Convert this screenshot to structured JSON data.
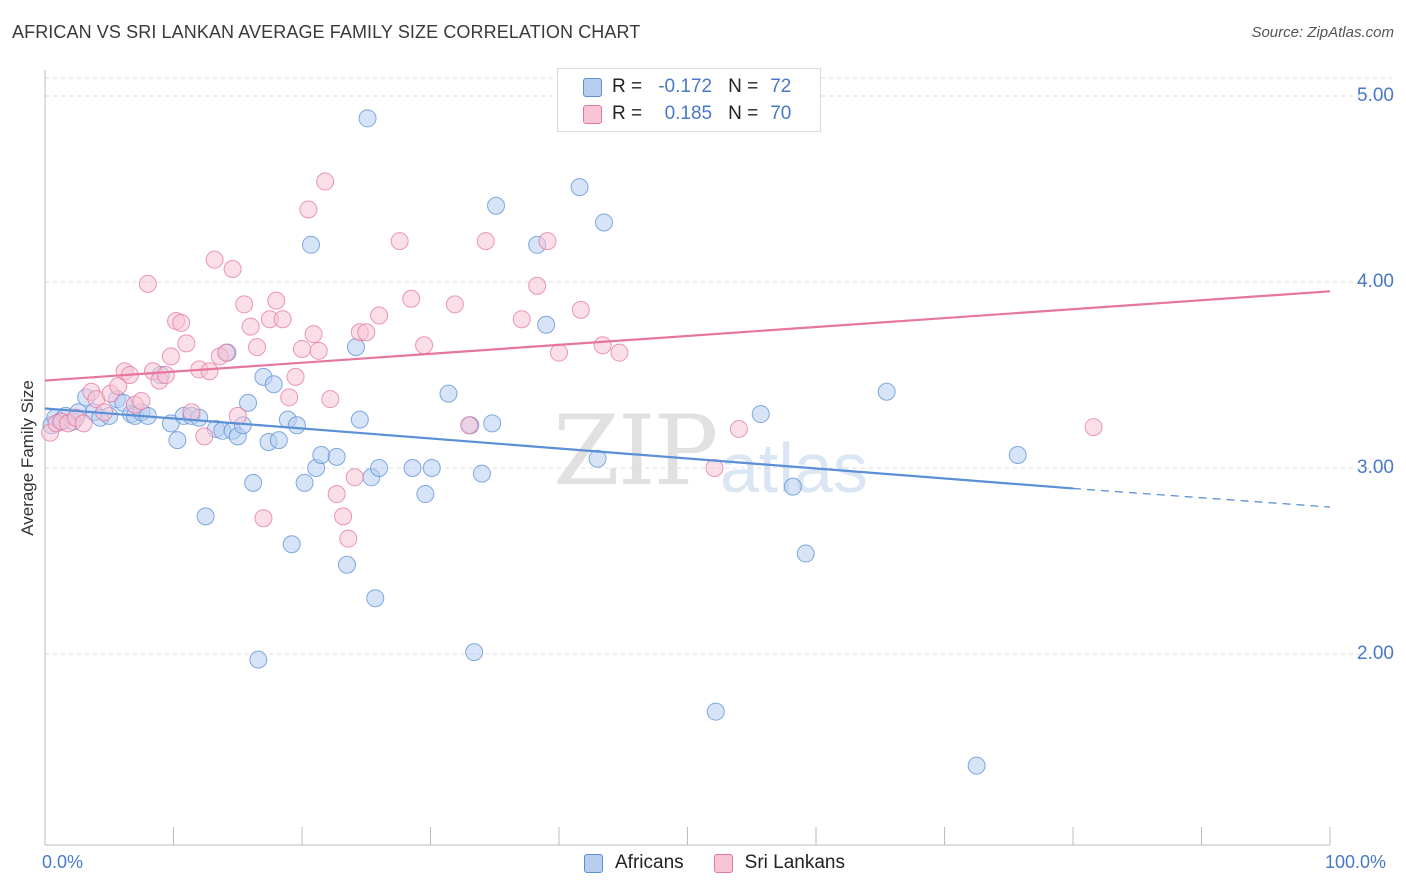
{
  "title": "AFRICAN VS SRI LANKAN AVERAGE FAMILY SIZE CORRELATION CHART",
  "source": "Source: ZipAtlas.com",
  "watermark": {
    "zip": "ZIP",
    "atlas": "atlas"
  },
  "colors": {
    "africans": "#5b8fd6",
    "africans_fill": "#b7cef0",
    "srilankans": "#e6759f",
    "srilankans_fill": "#f7c4d6",
    "axis_text": "#4a78c8"
  },
  "legend": {
    "rows": [
      {
        "r_label": "R =",
        "r_value": "-0.172",
        "n_label": "N =",
        "n_value": "72"
      },
      {
        "r_label": "R =",
        "r_value": "0.185",
        "n_label": "N =",
        "n_value": "70"
      }
    ]
  },
  "bottom_legend": {
    "africans": "Africans",
    "srilankans": "Sri Lankans"
  },
  "chart_data": {
    "type": "scatter",
    "ylabel": "Average Family Size",
    "xlabel": "",
    "xlim": [
      0,
      100
    ],
    "ylim": [
      1.0,
      5.25
    ],
    "x_ticks": [
      "0.0%",
      "100.0%"
    ],
    "y_ticks": [
      {
        "value": 2.0,
        "label": "2.00"
      },
      {
        "value": 3.0,
        "label": "3.00"
      },
      {
        "value": 4.0,
        "label": "4.00"
      },
      {
        "value": 5.0,
        "label": "5.00"
      }
    ],
    "grid": "horizontal dashed",
    "series": [
      {
        "name": "Africans",
        "color": "#5b8fd6",
        "trend": {
          "x0": 0,
          "y0": 3.32,
          "x1": 80,
          "y1": 2.89,
          "dashed_to": 100,
          "y_dashed_end": 2.79
        },
        "points": [
          [
            0.5,
            3.23
          ],
          [
            0.8,
            3.27
          ],
          [
            1.2,
            3.25
          ],
          [
            1.6,
            3.28
          ],
          [
            2.2,
            3.25
          ],
          [
            2.6,
            3.3
          ],
          [
            3.2,
            3.38
          ],
          [
            3.8,
            3.3
          ],
          [
            4.3,
            3.27
          ],
          [
            5.0,
            3.28
          ],
          [
            5.6,
            3.37
          ],
          [
            6.1,
            3.35
          ],
          [
            6.7,
            3.29
          ],
          [
            7.0,
            3.28
          ],
          [
            7.5,
            3.3
          ],
          [
            8.0,
            3.28
          ],
          [
            9.0,
            3.5
          ],
          [
            9.8,
            3.24
          ],
          [
            10.3,
            3.15
          ],
          [
            10.8,
            3.28
          ],
          [
            11.4,
            3.28
          ],
          [
            12.0,
            3.27
          ],
          [
            12.5,
            2.74
          ],
          [
            13.3,
            3.21
          ],
          [
            13.8,
            3.2
          ],
          [
            14.2,
            3.62
          ],
          [
            14.6,
            3.2
          ],
          [
            15.0,
            3.17
          ],
          [
            15.4,
            3.23
          ],
          [
            15.8,
            3.35
          ],
          [
            16.2,
            2.92
          ],
          [
            16.6,
            1.97
          ],
          [
            17.0,
            3.49
          ],
          [
            17.4,
            3.14
          ],
          [
            17.8,
            3.45
          ],
          [
            18.2,
            3.15
          ],
          [
            18.9,
            3.26
          ],
          [
            19.2,
            2.59
          ],
          [
            19.6,
            3.23
          ],
          [
            20.2,
            2.92
          ],
          [
            20.7,
            4.2
          ],
          [
            21.1,
            3.0
          ],
          [
            21.5,
            3.07
          ],
          [
            22.7,
            3.06
          ],
          [
            23.5,
            2.48
          ],
          [
            24.2,
            3.65
          ],
          [
            24.5,
            3.26
          ],
          [
            25.1,
            4.88
          ],
          [
            25.4,
            2.95
          ],
          [
            25.7,
            2.3
          ],
          [
            28.6,
            3.0
          ],
          [
            29.6,
            2.86
          ],
          [
            30.1,
            3.0
          ],
          [
            31.4,
            3.4
          ],
          [
            33.1,
            3.23
          ],
          [
            33.4,
            2.01
          ],
          [
            34.0,
            2.97
          ],
          [
            34.8,
            3.24
          ],
          [
            35.1,
            4.41
          ],
          [
            38.3,
            4.2
          ],
          [
            39.0,
            3.77
          ],
          [
            41.6,
            4.51
          ],
          [
            43.5,
            4.32
          ],
          [
            43.0,
            3.05
          ],
          [
            52.2,
            1.69
          ],
          [
            55.7,
            3.29
          ],
          [
            58.2,
            2.9
          ],
          [
            59.2,
            2.54
          ],
          [
            65.5,
            3.41
          ],
          [
            72.5,
            1.4
          ],
          [
            75.7,
            3.07
          ],
          [
            26.0,
            3.0
          ]
        ]
      },
      {
        "name": "Sri Lankans",
        "color": "#e6759f",
        "trend": {
          "x0": 0,
          "y0": 3.47,
          "x1": 100,
          "y1": 3.95
        },
        "points": [
          [
            0.4,
            3.19
          ],
          [
            0.9,
            3.24
          ],
          [
            1.3,
            3.25
          ],
          [
            1.8,
            3.24
          ],
          [
            2.4,
            3.27
          ],
          [
            3.0,
            3.24
          ],
          [
            3.6,
            3.41
          ],
          [
            4.0,
            3.37
          ],
          [
            4.6,
            3.3
          ],
          [
            5.1,
            3.4
          ],
          [
            5.7,
            3.44
          ],
          [
            6.2,
            3.52
          ],
          [
            6.6,
            3.5
          ],
          [
            7.0,
            3.34
          ],
          [
            7.5,
            3.36
          ],
          [
            8.0,
            3.99
          ],
          [
            8.4,
            3.52
          ],
          [
            8.9,
            3.47
          ],
          [
            9.4,
            3.5
          ],
          [
            9.8,
            3.6
          ],
          [
            10.2,
            3.79
          ],
          [
            10.6,
            3.78
          ],
          [
            11.0,
            3.67
          ],
          [
            11.4,
            3.3
          ],
          [
            12.0,
            3.53
          ],
          [
            12.4,
            3.17
          ],
          [
            12.8,
            3.52
          ],
          [
            13.2,
            4.12
          ],
          [
            13.6,
            3.6
          ],
          [
            14.1,
            3.62
          ],
          [
            14.6,
            4.07
          ],
          [
            15.0,
            3.28
          ],
          [
            15.5,
            3.88
          ],
          [
            16.0,
            3.76
          ],
          [
            16.5,
            3.65
          ],
          [
            17.0,
            2.73
          ],
          [
            17.5,
            3.8
          ],
          [
            18.0,
            3.9
          ],
          [
            18.5,
            3.8
          ],
          [
            19.0,
            3.38
          ],
          [
            19.5,
            3.49
          ],
          [
            20.0,
            3.64
          ],
          [
            20.5,
            4.39
          ],
          [
            20.9,
            3.72
          ],
          [
            21.3,
            3.63
          ],
          [
            21.8,
            4.54
          ],
          [
            22.2,
            3.37
          ],
          [
            22.7,
            2.86
          ],
          [
            23.2,
            2.74
          ],
          [
            23.6,
            2.62
          ],
          [
            24.1,
            2.95
          ],
          [
            24.5,
            3.73
          ],
          [
            25.0,
            3.73
          ],
          [
            26.0,
            3.82
          ],
          [
            27.6,
            4.22
          ],
          [
            28.5,
            3.91
          ],
          [
            29.5,
            3.66
          ],
          [
            31.9,
            3.88
          ],
          [
            33.0,
            3.23
          ],
          [
            34.3,
            4.22
          ],
          [
            37.1,
            3.8
          ],
          [
            38.3,
            3.98
          ],
          [
            39.1,
            4.22
          ],
          [
            40.0,
            3.62
          ],
          [
            41.7,
            3.85
          ],
          [
            43.4,
            3.66
          ],
          [
            44.7,
            3.62
          ],
          [
            52.1,
            3.0
          ],
          [
            54.0,
            3.21
          ],
          [
            81.6,
            3.22
          ]
        ]
      }
    ]
  }
}
